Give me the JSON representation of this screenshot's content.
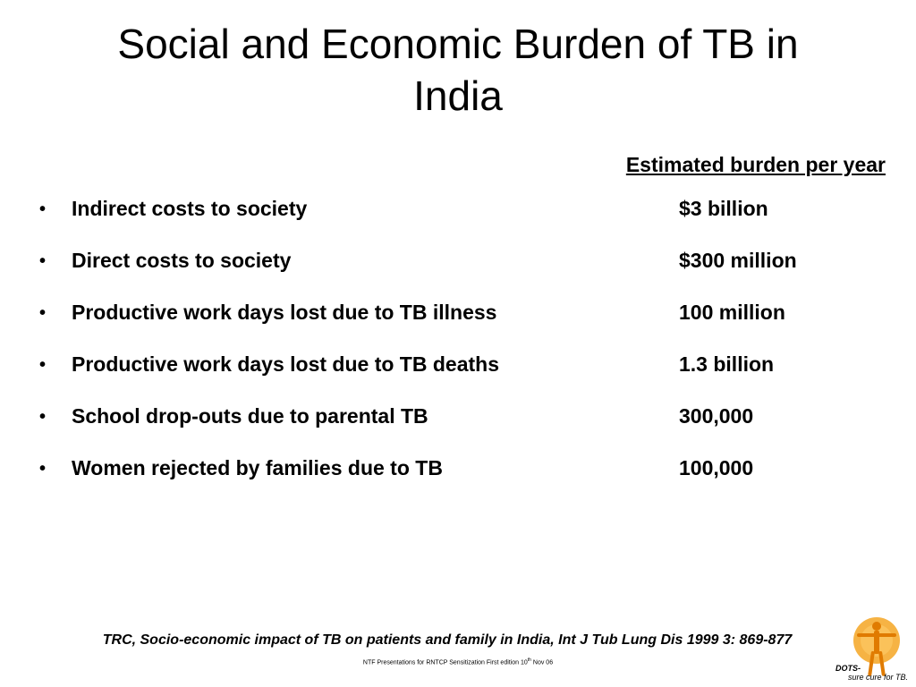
{
  "slide": {
    "title_line1": "Social and Economic Burden of TB in",
    "title_line2": "India",
    "column_header": "Estimated burden per year",
    "bullet_char": "•",
    "rows": [
      {
        "label": "Indirect costs to society",
        "value": "$3 billion"
      },
      {
        "label": "Direct costs to society",
        "value": "$300 million"
      },
      {
        "label": "Productive work days lost due to TB illness",
        "value": "100 million"
      },
      {
        "label": "Productive work days lost due to TB deaths",
        "value": "1.3 billion"
      },
      {
        "label": "School drop-outs due to parental TB",
        "value": "300,000"
      },
      {
        "label": "Women rejected by families due to TB",
        "value": "100,000"
      }
    ],
    "citation": "TRC, Socio-economic impact of TB on patients and family in India, Int J Tub Lung Dis 1999 3: 869-877",
    "footer_prefix": "NTF Presentations for RNTCP Sensitization First edition 10",
    "footer_sup": "th",
    "footer_suffix": " Nov 06",
    "logo": {
      "text_line1": "DOTS-",
      "text_line2": "sure cure for TB.",
      "colors": {
        "sun": "#f5a623",
        "figure": "#e07b00"
      }
    }
  }
}
